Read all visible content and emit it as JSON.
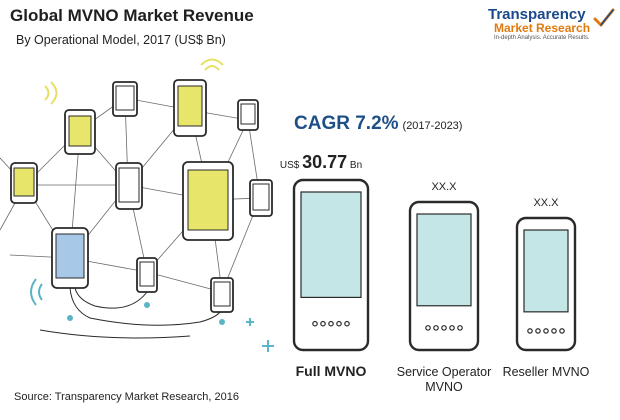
{
  "header": {
    "title": "Global MVNO Market Revenue",
    "subtitle": "By Operational Model, 2017 (US$ Bn)"
  },
  "logo": {
    "name": "Transparency",
    "name2": "Market Research",
    "tagline": "In-depth Analysis. Accurate Results."
  },
  "cagr": {
    "label": "CAGR 7.2%",
    "period": "(2017-2023)"
  },
  "source": "Source: Transparency Market Research, 2016",
  "colors": {
    "accent_blue": "#1e4f87",
    "phone_yellow": "#e8e66a",
    "phone_blue": "#a8c8e8",
    "phone_teal": "#c5e6e6",
    "phone_stroke": "#2a2a2a"
  },
  "chart_data": {
    "type": "bar",
    "title": "Global MVNO Market Revenue",
    "subtitle": "By Operational Model, 2017 (US$ Bn)",
    "categories": [
      "Full MVNO",
      "Service Operator MVNO",
      "Reseller MVNO"
    ],
    "category_lines": [
      [
        "Full MVNO"
      ],
      [
        "Service Operator",
        "MVNO"
      ],
      [
        "Reseller MVNO"
      ]
    ],
    "values": [
      30.77,
      null,
      null
    ],
    "value_labels": [
      {
        "prefix": "US$",
        "value": "30.77",
        "suffix": "Bn"
      },
      {
        "prefix": "",
        "value": "XX.X",
        "suffix": ""
      },
      {
        "prefix": "",
        "value": "XX.X",
        "suffix": ""
      }
    ],
    "unit": "US$ Bn",
    "year": 2017
  }
}
